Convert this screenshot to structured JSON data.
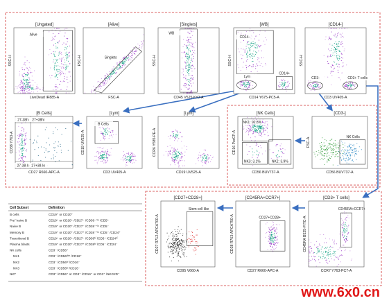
{
  "panels": [
    {
      "title": "[Ungated]",
      "x_label": "LiveDead IR885-A",
      "y_label": "SSC-H",
      "gates": [
        "Alive"
      ]
    },
    {
      "title": "[Alive]",
      "x_label": "FSC-A",
      "y_label": "FSC-H",
      "gates": [
        "Singlets"
      ]
    },
    {
      "title": "[Singlets]",
      "x_label": "CD45 V525-KrO-A",
      "y_label": "SSC-H",
      "gates": [
        "WB"
      ]
    },
    {
      "title": "[WB]",
      "x_label": "CD14 Y675-PC5-A",
      "y_label": "SSC-H",
      "gates": [
        "CD14-",
        "CD14+",
        "Lym"
      ]
    },
    {
      "title": "[CD14-]",
      "x_label": "CD3 UV405-A",
      "y_label": "SSC-H",
      "gates": [
        "CD3-",
        "CD3+ T cells"
      ]
    },
    {
      "title": "[B Cells]",
      "x_label": "CD27 R660-APC-A",
      "y_label": "CD38 Y763-A",
      "gates": [
        "27-38hi",
        "27+38hi",
        "27-38-lo",
        "27+38-lo"
      ]
    },
    {
      "title": "[Lym]",
      "x_label": "CD3 UV405-A",
      "y_label": "CD19 UV525-A",
      "gates": [
        "B Cells"
      ]
    },
    {
      "title": "[Lym]",
      "x_label": "CD19 UV525-A",
      "y_label": "CCR6 Y585-PE-A",
      "gates": []
    },
    {
      "title": "[NK Cells]",
      "x_label": "CD56 BUV737-A",
      "y_label": "CD16 PerCP-A",
      "gates": [
        "NK1: 92.8%",
        "NK3: 3.1%",
        "NK2: 3.9%"
      ]
    },
    {
      "title": "[CD3-]",
      "x_label": "CD56 BUV737-A",
      "y_label": "FSC-A",
      "gates": [
        "NK Cells"
      ]
    },
    {
      "title": "[CD27+CD28+]",
      "x_label": "CD95 V660-A",
      "y_label": "CD27 R712-APCA700-A",
      "gates": [
        "Stem cell like"
      ]
    },
    {
      "title": "[CD45RA+CCR7+]",
      "x_label": "CD27 R660-APC-A",
      "y_label": "CD28 R763-APCA750-A",
      "gates": [
        "CD27+CD28+"
      ]
    },
    {
      "title": "[CD3+ T cells]",
      "x_label": "CCR7 Y763-PC7-A",
      "y_label": "CD45RA B525-FITC-A",
      "gates": [
        "CD45RA+CCR7+"
      ]
    }
  ],
  "table": {
    "header": [
      "Cell Subset",
      "Definition"
    ],
    "rows": [
      [
        "B cells",
        "CD19⁺ or CD20⁺"
      ],
      [
        "Pre¯naive B",
        "CD19⁺ or CD20⁺ /CD27⁻ /CD38⁻ᐟˡᵒ /CD5⁺"
      ],
      [
        "Naive B",
        "CD19⁺ or CD20⁺ /CD27⁻ /CD38⁻ᐟˡᵒ /CD5⁻"
      ],
      [
        "Memory B",
        "CD19⁺ or CD20⁺ /CD27⁺ /CD38⁻ᐟˡᵒ /CD5⁻ /CD24⁺"
      ],
      [
        "Transitional B",
        "CD19⁺ or CD20⁺ /CD27⁻ /CD38ʰⁱ /CD5⁺ /CD24ʰⁱ"
      ],
      [
        "Plasma blasts",
        "CD19⁺ or CD20⁺ /CD27⁺ /CD38ʰⁱ /CD5⁻ /CD24⁻"
      ],
      [
        "NK cells",
        "CD3⁻ /CD56⁺"
      ],
      [
        "NK1",
        "CD3⁻ /CD56ᵈⁱᵐ /CD16⁺"
      ],
      [
        "NK2",
        "CD3⁻ /CD56ʰⁱ /CD16⁻"
      ],
      [
        "NK3",
        "CD3⁻ /CD56ˡᵒ /CD16⁻"
      ],
      [
        "NKT",
        "CD3⁺ /CD56⁺ or CD3⁺ /CD16⁺ or CD3⁺ /NKG2D⁺"
      ]
    ]
  },
  "watermark": "www.6x0.cn"
}
